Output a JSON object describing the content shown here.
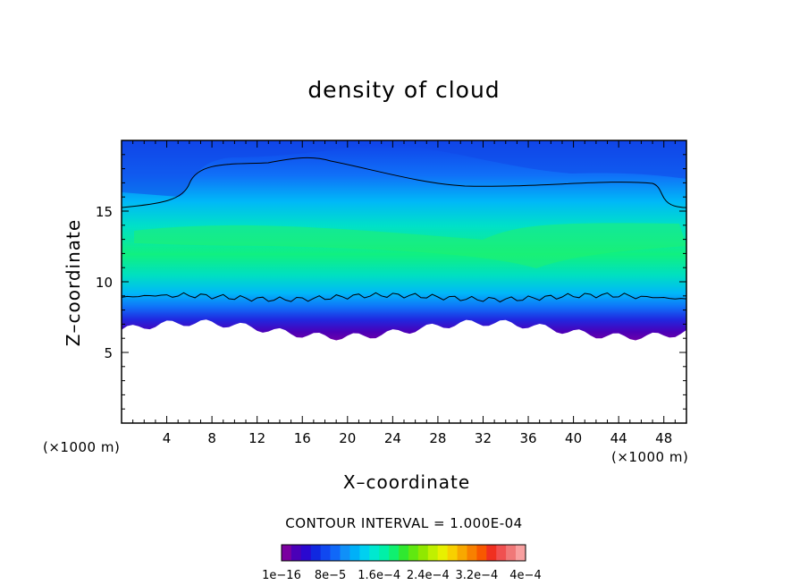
{
  "chart_data": {
    "type": "heatmap",
    "title": "density of cloud",
    "xlabel": "X–coordinate",
    "ylabel": "Z–coordinate",
    "x_unit": "(×1000 m)",
    "y_unit": "(×1000 m)",
    "xlim": [
      0,
      50
    ],
    "ylim": [
      0,
      20
    ],
    "xticks": [
      "4",
      "8",
      "12",
      "16",
      "20",
      "24",
      "28",
      "32",
      "36",
      "40",
      "44",
      "48"
    ],
    "yticks": [
      "5",
      "10",
      "15"
    ],
    "contour_interval_text": "CONTOUR INTERVAL = 1.000E-04",
    "colorbar": {
      "tick_labels": [
        "1e−16",
        "8e−5",
        "1.6e−4",
        "2.4e−4",
        "3.2e−4",
        "4e−4"
      ],
      "colors": [
        "#7a00a0",
        "#4a00b8",
        "#2a08d0",
        "#1028e0",
        "#1048f0",
        "#1068f8",
        "#1090f8",
        "#00b0f8",
        "#00d0f0",
        "#00e8d0",
        "#00f0a8",
        "#10f070",
        "#30e830",
        "#60e810",
        "#90e800",
        "#c0f000",
        "#e8f000",
        "#f8d000",
        "#f8a800",
        "#f88000",
        "#f85800",
        "#f03020",
        "#f05050",
        "#f07878",
        "#f8a0a0"
      ]
    },
    "grid": false,
    "legend": "colorbar-bottom"
  }
}
